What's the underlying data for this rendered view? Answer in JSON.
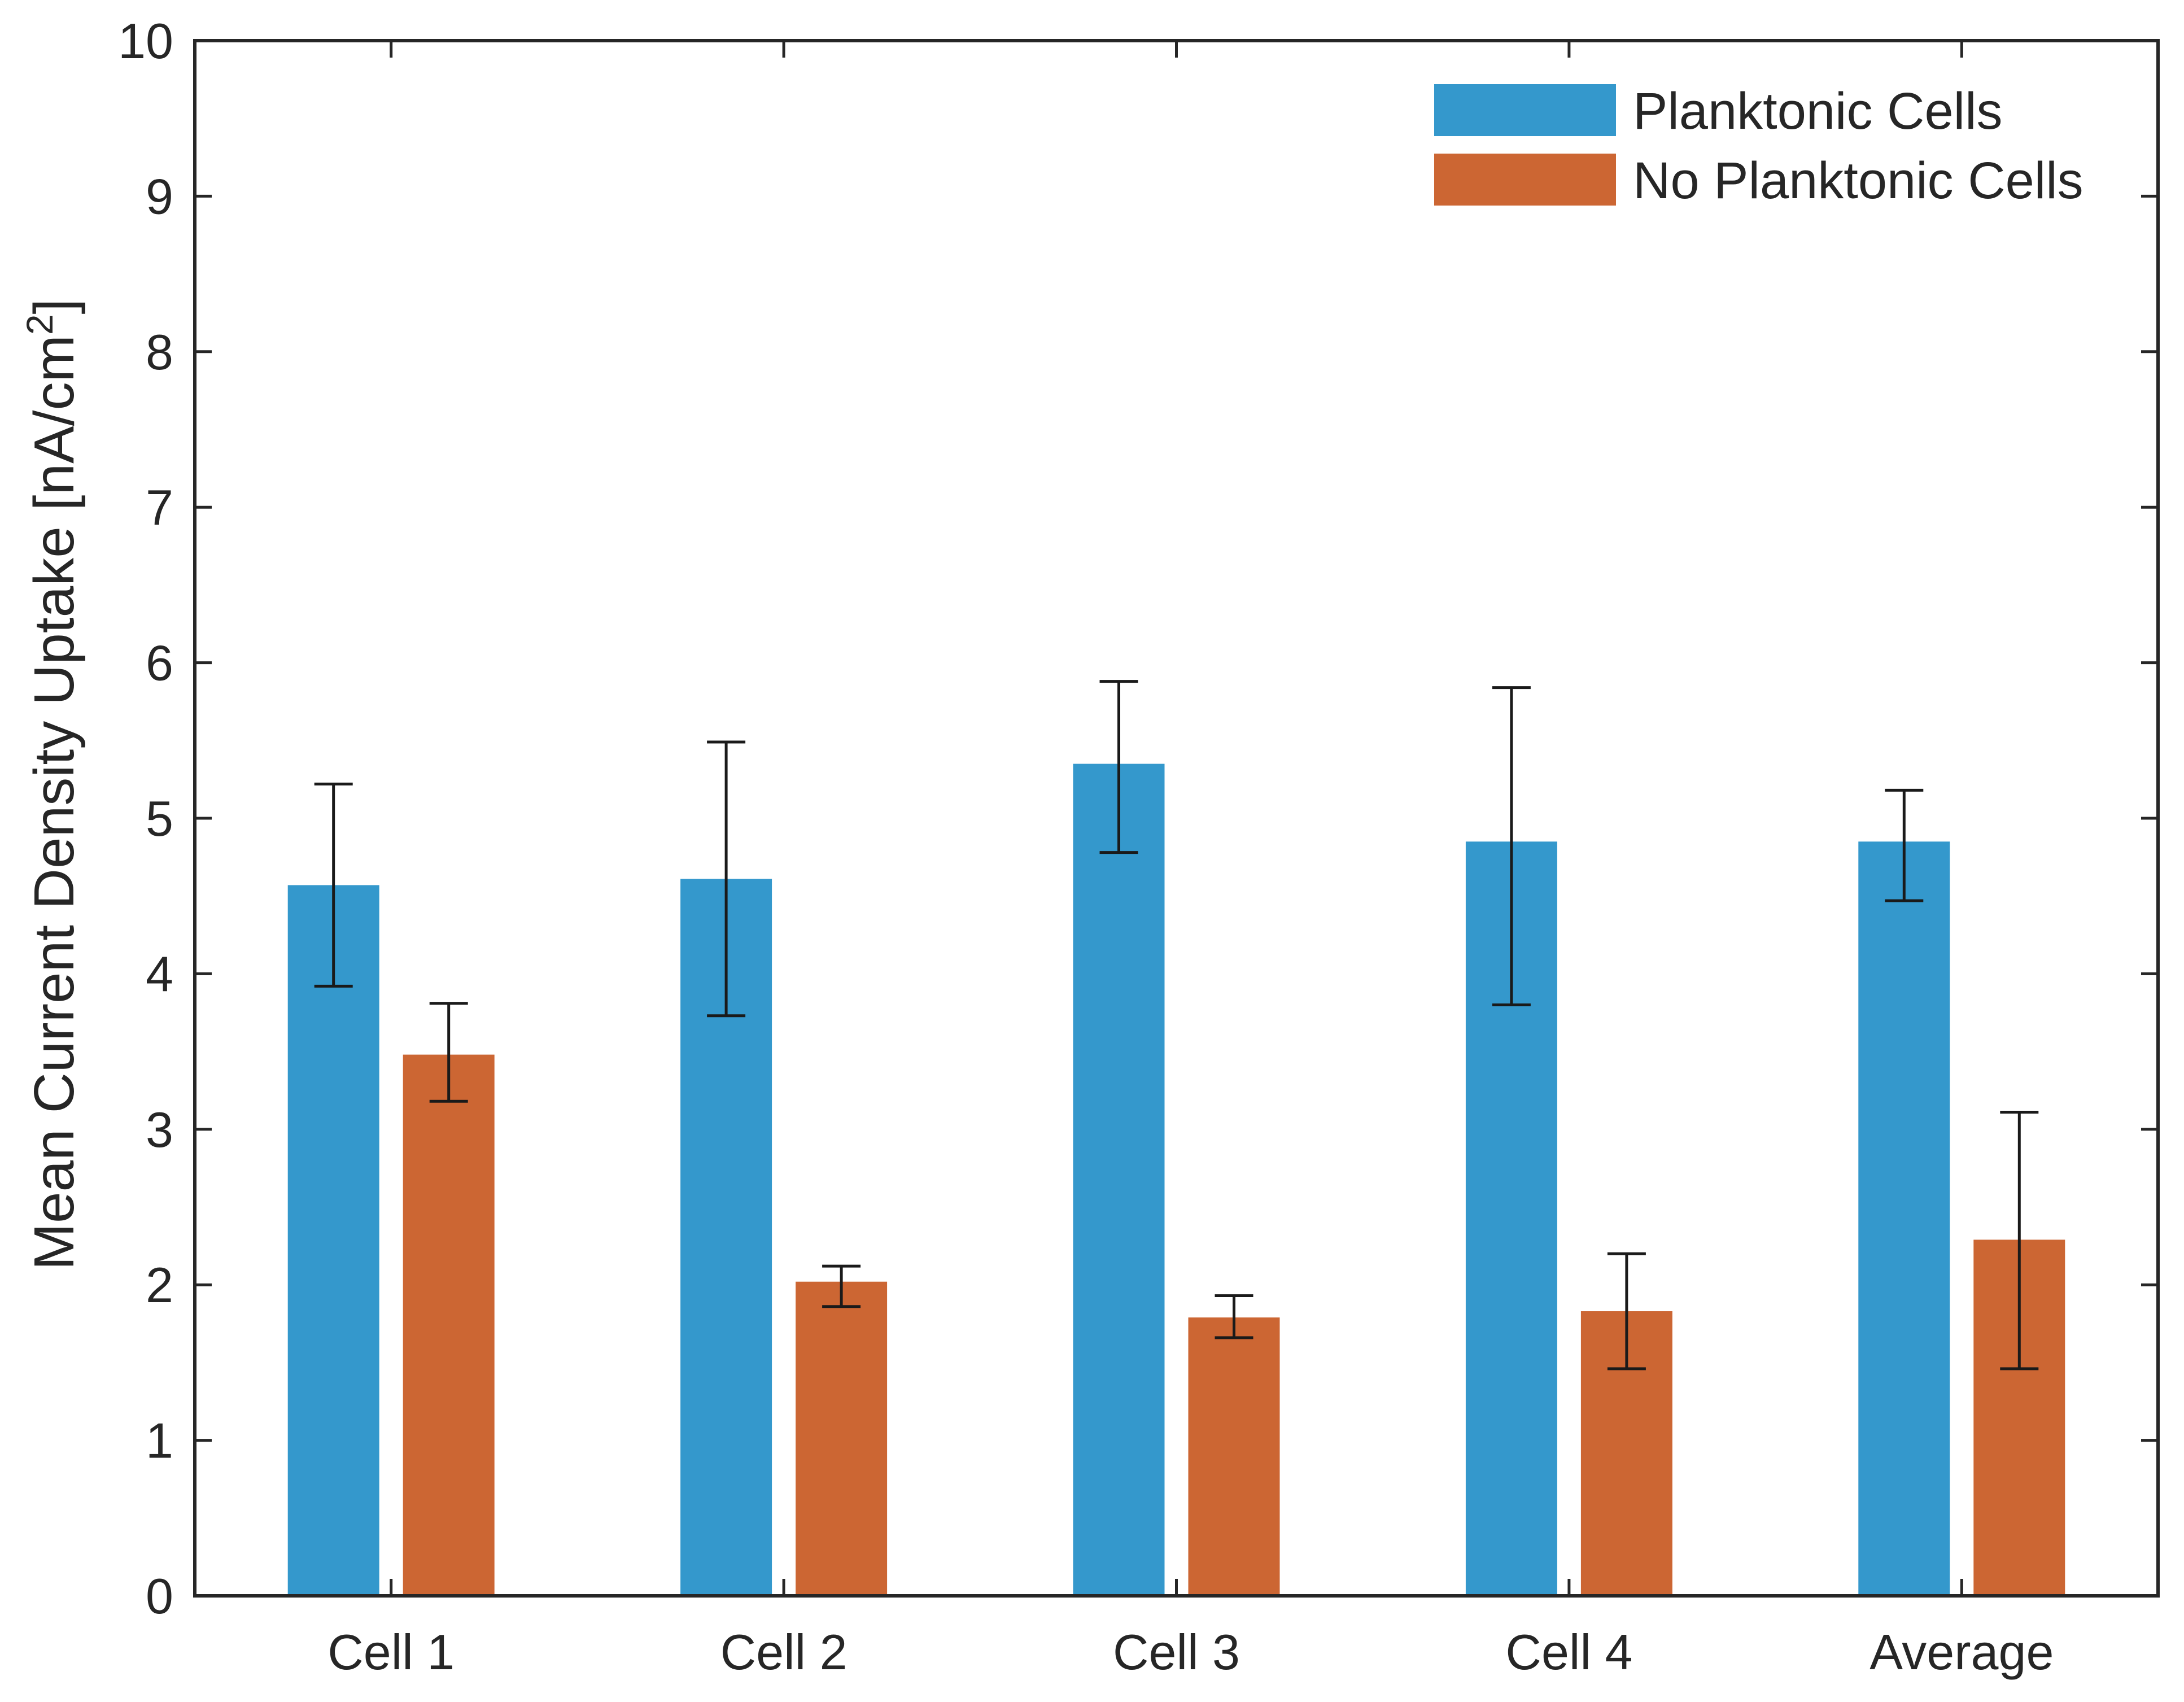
{
  "chart_data": {
    "type": "bar",
    "title": "",
    "xlabel": "",
    "ylabel": "Mean Current Density Uptake [nA/cm",
    "ylabel_superscript": "2",
    "ylabel_close": "]",
    "ylim": [
      0,
      10
    ],
    "yticks": [
      0,
      1,
      2,
      3,
      4,
      5,
      6,
      7,
      8,
      9,
      10
    ],
    "ytick_labels": [
      "0",
      "1",
      "2",
      "3",
      "4",
      "5",
      "6",
      "7",
      "8",
      "9",
      "10"
    ],
    "categories": [
      "Cell 1",
      "Cell 2",
      "Cell 3",
      "Cell 4",
      "Average"
    ],
    "legend_position": "top-right",
    "series": [
      {
        "name": "Planktonic Cells",
        "color": "#3498CC",
        "values": [
          4.57,
          4.61,
          5.35,
          4.85,
          4.85
        ],
        "err_low": [
          3.92,
          3.73,
          4.78,
          3.8,
          4.47
        ],
        "err_high": [
          5.22,
          5.49,
          5.88,
          5.84,
          5.18
        ]
      },
      {
        "name": "No Planktonic Cells",
        "color": "#CC6633",
        "values": [
          3.48,
          2.02,
          1.79,
          1.83,
          2.29
        ],
        "err_low": [
          3.18,
          1.86,
          1.66,
          1.46,
          1.46
        ],
        "err_high": [
          3.81,
          2.12,
          1.93,
          2.2,
          3.11
        ]
      }
    ]
  }
}
